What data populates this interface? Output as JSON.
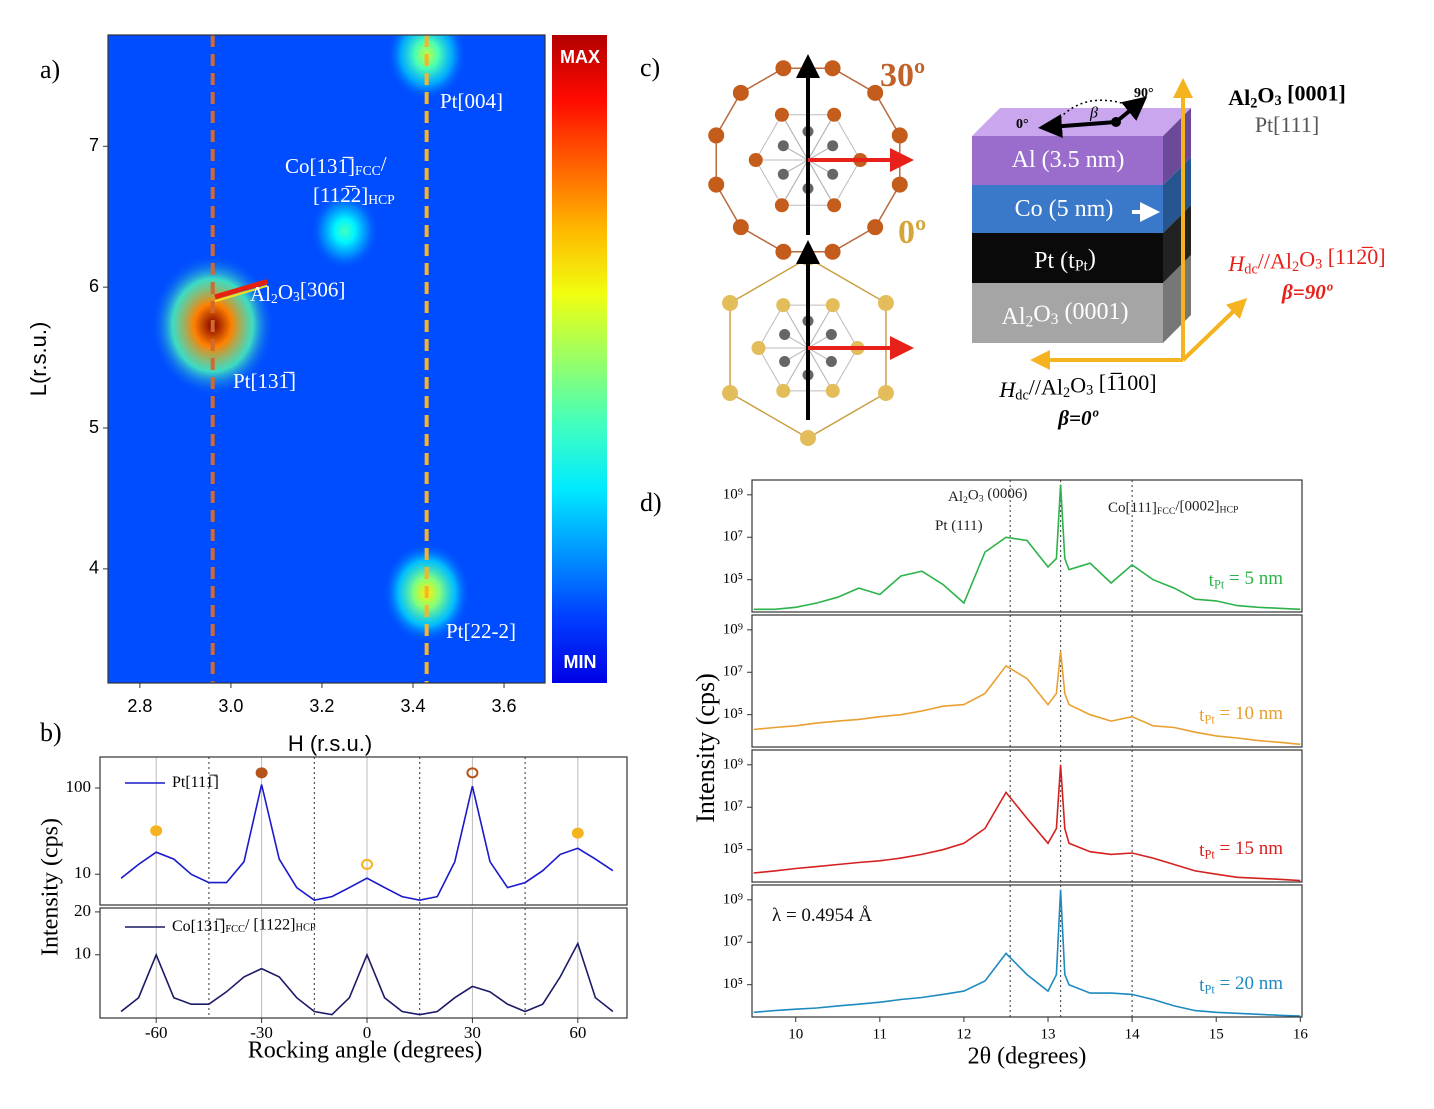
{
  "chart_data": [
    {
      "type": "heatmap",
      "label": "a)",
      "xlabel": "H (r.s.u.)",
      "ylabel": "L(r.s.u.)",
      "xlim": [
        2.73,
        3.69
      ],
      "ylim": [
        3.19,
        7.79
      ],
      "xticks": [
        2.8,
        {
          "value": 3,
          "label": "3.0"
        },
        3.2,
        3.4,
        3.6
      ],
      "yticks": [
        4,
        5,
        6,
        7
      ],
      "x": [
        2.96,
        3.25,
        3.43,
        3.43
      ],
      "y": [
        5.73,
        6.4,
        7.65,
        3.83
      ],
      "intensity": [
        100,
        30,
        45,
        55
      ],
      "colorbar_labels": [
        "MAX",
        "MIN"
      ],
      "vlines": [
        {
          "value": 2.96,
          "color": "#d2692e"
        },
        {
          "value": 3.43,
          "color": "#f7b42a"
        }
      ],
      "annotations": [
        [
          "Pt[004]"
        ],
        [
          "Co[13",
          "1̅",
          "]",
          {
            "sub": "FCC"
          },
          "/"
        ],
        [
          "[11",
          "2̅",
          "2]",
          {
            "sub": "HCP"
          }
        ],
        [
          "Al",
          {
            "sub": "2"
          },
          "O",
          {
            "sub": "3"
          },
          "[306]"
        ],
        [
          "Pt[13",
          "1̅",
          "]"
        ],
        [
          "Pt[22-2]"
        ]
      ]
    },
    {
      "type": "line",
      "label": "b)",
      "ylabel": "Intensity (cps)",
      "log_y": true,
      "xlim": [
        -76,
        74
      ],
      "ylim": [
        4.4,
        229
      ],
      "yticks": [
        10,
        100
      ],
      "gridlines_x": [
        -60,
        -30,
        0,
        30,
        60
      ],
      "dotted_lines_x": [
        -45,
        -15,
        15,
        45
      ],
      "x": [
        -70,
        -65,
        -60,
        -55,
        -50,
        -45,
        -40,
        -35,
        -30,
        -25,
        -20,
        -15,
        -10,
        -5,
        0,
        5,
        10,
        15,
        20,
        25,
        30,
        35,
        40,
        45,
        50,
        55,
        60,
        65,
        70
      ],
      "series": [
        {
          "name": [
            "Pt[11",
            "1̅",
            "]"
          ],
          "color": "#1a1acc",
          "values": [
            9,
            13,
            18,
            15,
            10,
            8,
            8,
            14,
            110,
            15,
            7,
            5,
            5.5,
            7,
            9,
            7,
            5.5,
            5,
            5.5,
            14,
            105,
            14,
            7,
            8,
            11,
            17,
            20,
            15,
            11
          ]
        }
      ],
      "markers": {
        "x": [
          -60,
          -30,
          0,
          30,
          60
        ],
        "y": [
          32,
          150,
          13,
          150,
          30
        ],
        "colors": [
          "#f5b31f",
          "#b5541c",
          "#f5b31f",
          "#b5541c",
          "#f5b31f"
        ],
        "filled": [
          true,
          true,
          false,
          false,
          true
        ]
      }
    },
    {
      "type": "line",
      "xlabel": "Rocking angle (degrees)",
      "log_y": true,
      "xlim": [
        -76,
        74
      ],
      "ylim": [
        3.6,
        21.3
      ],
      "xticks": [
        -60,
        -30,
        0,
        30,
        60
      ],
      "yticks": [
        10,
        20
      ],
      "gridlines_x": [
        -60,
        -30,
        0,
        30,
        60
      ],
      "dotted_lines_x": [
        -45,
        -15,
        15,
        45
      ],
      "x": [
        -70,
        -65,
        -60,
        -55,
        -50,
        -45,
        -40,
        -35,
        -30,
        -25,
        -20,
        -15,
        -10,
        -5,
        0,
        5,
        10,
        15,
        20,
        25,
        30,
        35,
        40,
        45,
        50,
        55,
        60,
        65,
        70
      ],
      "series": [
        {
          "name": [
            "Co[13",
            "1̅",
            "]",
            {
              "sub": "FCC"
            },
            "/ [1122]",
            {
              "sub": "HCP"
            }
          ],
          "color": "#1a1a66",
          "values": [
            4,
            5,
            10,
            5,
            4.5,
            4.5,
            5.5,
            7,
            8,
            7,
            5,
            4,
            3.8,
            5,
            10,
            5,
            4,
            3.8,
            4,
            5,
            6,
            5.5,
            4.5,
            4,
            4.5,
            7,
            12,
            5,
            4
          ]
        }
      ]
    },
    {
      "type": "line",
      "label": "d)",
      "ylabel": "Intensity (cps)",
      "log_y": true,
      "xlim": [
        9.48,
        16.02
      ],
      "ylim": [
        3000,
        5000000000.0
      ],
      "yticks": [
        {
          "value": 100000,
          "label": "10⁵"
        },
        {
          "value": 10000000,
          "label": "10⁷"
        },
        {
          "value": 1000000000,
          "label": "10⁹"
        }
      ],
      "dotted_lines_x": [
        12.55,
        13.15,
        14
      ],
      "annotations": [
        [
          "Al",
          {
            "sub": "2"
          },
          "O",
          {
            "sub": "3"
          },
          " (0006)"
        ],
        [
          "Pt (111)"
        ],
        [
          "Co[111]",
          {
            "sub": "FCC"
          },
          "/[0002]",
          {
            "sub": "HCP"
          }
        ]
      ],
      "x": [
        9.5,
        9.75,
        10,
        10.25,
        10.5,
        10.75,
        11,
        11.25,
        11.5,
        11.75,
        12,
        12.25,
        12.5,
        12.75,
        13,
        13.1,
        13.15,
        13.2,
        13.25,
        13.5,
        13.75,
        14,
        14.25,
        14.5,
        14.75,
        15,
        15.25,
        15.5,
        15.75,
        16
      ],
      "series": [
        {
          "name": [
            "t",
            {
              "sub": "Pt"
            },
            " = 5 nm"
          ],
          "color": "#2db34a",
          "values": [
            4000.0,
            4000.0,
            5000.0,
            8000.0,
            15000.0,
            40000.0,
            20000.0,
            150000.0,
            250000.0,
            60000.0,
            8000.0,
            2000000.0,
            10000000.0,
            7000000.0,
            400000.0,
            1000000.0,
            3000000000.0,
            1000000.0,
            300000.0,
            600000.0,
            70000.0,
            500000.0,
            100000.0,
            40000.0,
            12000.0,
            10000.0,
            6000.0,
            5000.0,
            4500.0,
            4000.0
          ]
        }
      ]
    },
    {
      "type": "line",
      "log_y": true,
      "xlim": [
        9.48,
        16.02
      ],
      "ylim": [
        3000,
        5000000000.0
      ],
      "yticks": [
        {
          "value": 100000,
          "label": "10⁵"
        },
        {
          "value": 10000000,
          "label": "10⁷"
        },
        {
          "value": 1000000000,
          "label": "10⁹"
        }
      ],
      "dotted_lines_x": [
        12.55,
        13.15,
        14
      ],
      "x": [
        9.5,
        9.75,
        10,
        10.25,
        10.5,
        10.75,
        11,
        11.25,
        11.5,
        11.75,
        12,
        12.25,
        12.5,
        12.75,
        13,
        13.1,
        13.15,
        13.2,
        13.25,
        13.5,
        13.75,
        14,
        14.25,
        14.5,
        14.75,
        15,
        15.25,
        15.5,
        15.75,
        16
      ],
      "series": [
        {
          "name": [
            "t",
            {
              "sub": "Pt"
            },
            " = 10 nm"
          ],
          "color": "#e8a030",
          "values": [
            20000.0,
            25000.0,
            30000.0,
            40000.0,
            50000.0,
            60000.0,
            80000.0,
            100000.0,
            150000.0,
            250000.0,
            300000.0,
            1000000.0,
            20000000.0,
            5000000.0,
            300000.0,
            1000000.0,
            100000000.0,
            1000000.0,
            300000.0,
            100000.0,
            50000.0,
            80000.0,
            30000.0,
            25000.0,
            15000.0,
            10000.0,
            8000.0,
            6000.0,
            5000.0,
            4000.0
          ]
        }
      ]
    },
    {
      "type": "line",
      "log_y": true,
      "xlim": [
        9.48,
        16.02
      ],
      "ylim": [
        3000,
        5000000000.0
      ],
      "yticks": [
        {
          "value": 100000,
          "label": "10⁵"
        },
        {
          "value": 10000000,
          "label": "10⁷"
        },
        {
          "value": 1000000000,
          "label": "10⁹"
        }
      ],
      "dotted_lines_x": [
        12.55,
        13.15,
        14
      ],
      "x": [
        9.5,
        9.75,
        10,
        10.25,
        10.5,
        10.75,
        11,
        11.25,
        11.5,
        11.75,
        12,
        12.25,
        12.5,
        12.75,
        13,
        13.1,
        13.15,
        13.2,
        13.25,
        13.5,
        13.75,
        14,
        14.25,
        14.5,
        14.75,
        15,
        15.25,
        15.5,
        15.75,
        16
      ],
      "series": [
        {
          "name": [
            "t",
            {
              "sub": "Pt"
            },
            " = 15 nm"
          ],
          "color": "#d62020",
          "values": [
            8000.0,
            10000.0,
            13000.0,
            16000.0,
            20000.0,
            25000.0,
            30000.0,
            40000.0,
            60000.0,
            100000.0,
            200000.0,
            1000000.0,
            50000000.0,
            3000000.0,
            200000.0,
            1000000.0,
            1000000000.0,
            1000000.0,
            200000.0,
            80000.0,
            60000.0,
            70000.0,
            40000.0,
            20000.0,
            10000.0,
            7000.0,
            5000.0,
            4500.0,
            4000.0,
            3500.0
          ]
        }
      ]
    },
    {
      "type": "line",
      "xlabel": "2θ (degrees)",
      "log_y": true,
      "xlim": [
        9.48,
        16.02
      ],
      "ylim": [
        3000,
        5000000000.0
      ],
      "xticks": [
        10,
        11,
        12,
        13,
        14,
        15,
        16
      ],
      "yticks": [
        {
          "value": 100000,
          "label": "10⁵"
        },
        {
          "value": 10000000,
          "label": "10⁷"
        },
        {
          "value": 1000000000,
          "label": "10⁹"
        }
      ],
      "dotted_lines_x": [
        12.55,
        13.15,
        14
      ],
      "annotations": [
        [
          "λ = 0.4954 Å"
        ]
      ],
      "x": [
        9.5,
        9.75,
        10,
        10.25,
        10.5,
        10.75,
        11,
        11.25,
        11.5,
        11.75,
        12,
        12.25,
        12.5,
        12.75,
        13,
        13.1,
        13.15,
        13.2,
        13.25,
        13.5,
        13.75,
        14,
        14.25,
        14.5,
        14.75,
        15,
        15.25,
        15.5,
        15.75,
        16
      ],
      "series": [
        {
          "name": [
            "t",
            {
              "sub": "Pt"
            },
            " = 20 nm"
          ],
          "color": "#1f8ac0",
          "values": [
            5000.0,
            6000.0,
            7000.0,
            8000.0,
            10000.0,
            12000.0,
            15000.0,
            20000.0,
            25000.0,
            35000.0,
            50000.0,
            150000.0,
            3000000.0,
            300000.0,
            50000.0,
            300000.0,
            3000000000.0,
            300000.0,
            100000.0,
            40000.0,
            40000.0,
            35000.0,
            20000.0,
            10000.0,
            6000.0,
            5000.0,
            4500.0,
            4000.0,
            3600.0,
            3300.0
          ]
        }
      ]
    }
  ],
  "diagram": {
    "label": "c)",
    "angle_30": "30º",
    "angle_0": "0º",
    "layers": [
      [
        "Al (3.5 nm)"
      ],
      [
        "Co (5 nm)"
      ],
      [
        "Pt (t",
        {
          "sub": "Pt"
        },
        ")"
      ],
      [
        "Al",
        {
          "sub": "2"
        },
        "O",
        {
          "sub": "3"
        },
        " (0001)"
      ]
    ],
    "beta_start": "0°",
    "beta_end": "90°",
    "beta": "β",
    "normal_axis": [
      "Al",
      {
        "sub": "2"
      },
      "O",
      {
        "sub": "3"
      },
      " [0001]"
    ],
    "normal_axis_pt": "Pt[111]",
    "field_90": [
      {
        "i": "H"
      },
      {
        "sub": "dc"
      },
      "//Al",
      {
        "sub": "2"
      },
      "O",
      {
        "sub": "3"
      },
      " [11",
      "2̅",
      "0]"
    ],
    "beta_90": "β=90º",
    "field_0": [
      {
        "i": "H"
      },
      {
        "sub": "dc"
      },
      "//Al",
      {
        "sub": "2"
      },
      "O",
      {
        "sub": "3"
      },
      " [",
      "1̅",
      "100]"
    ],
    "beta_0": "β=0º"
  }
}
